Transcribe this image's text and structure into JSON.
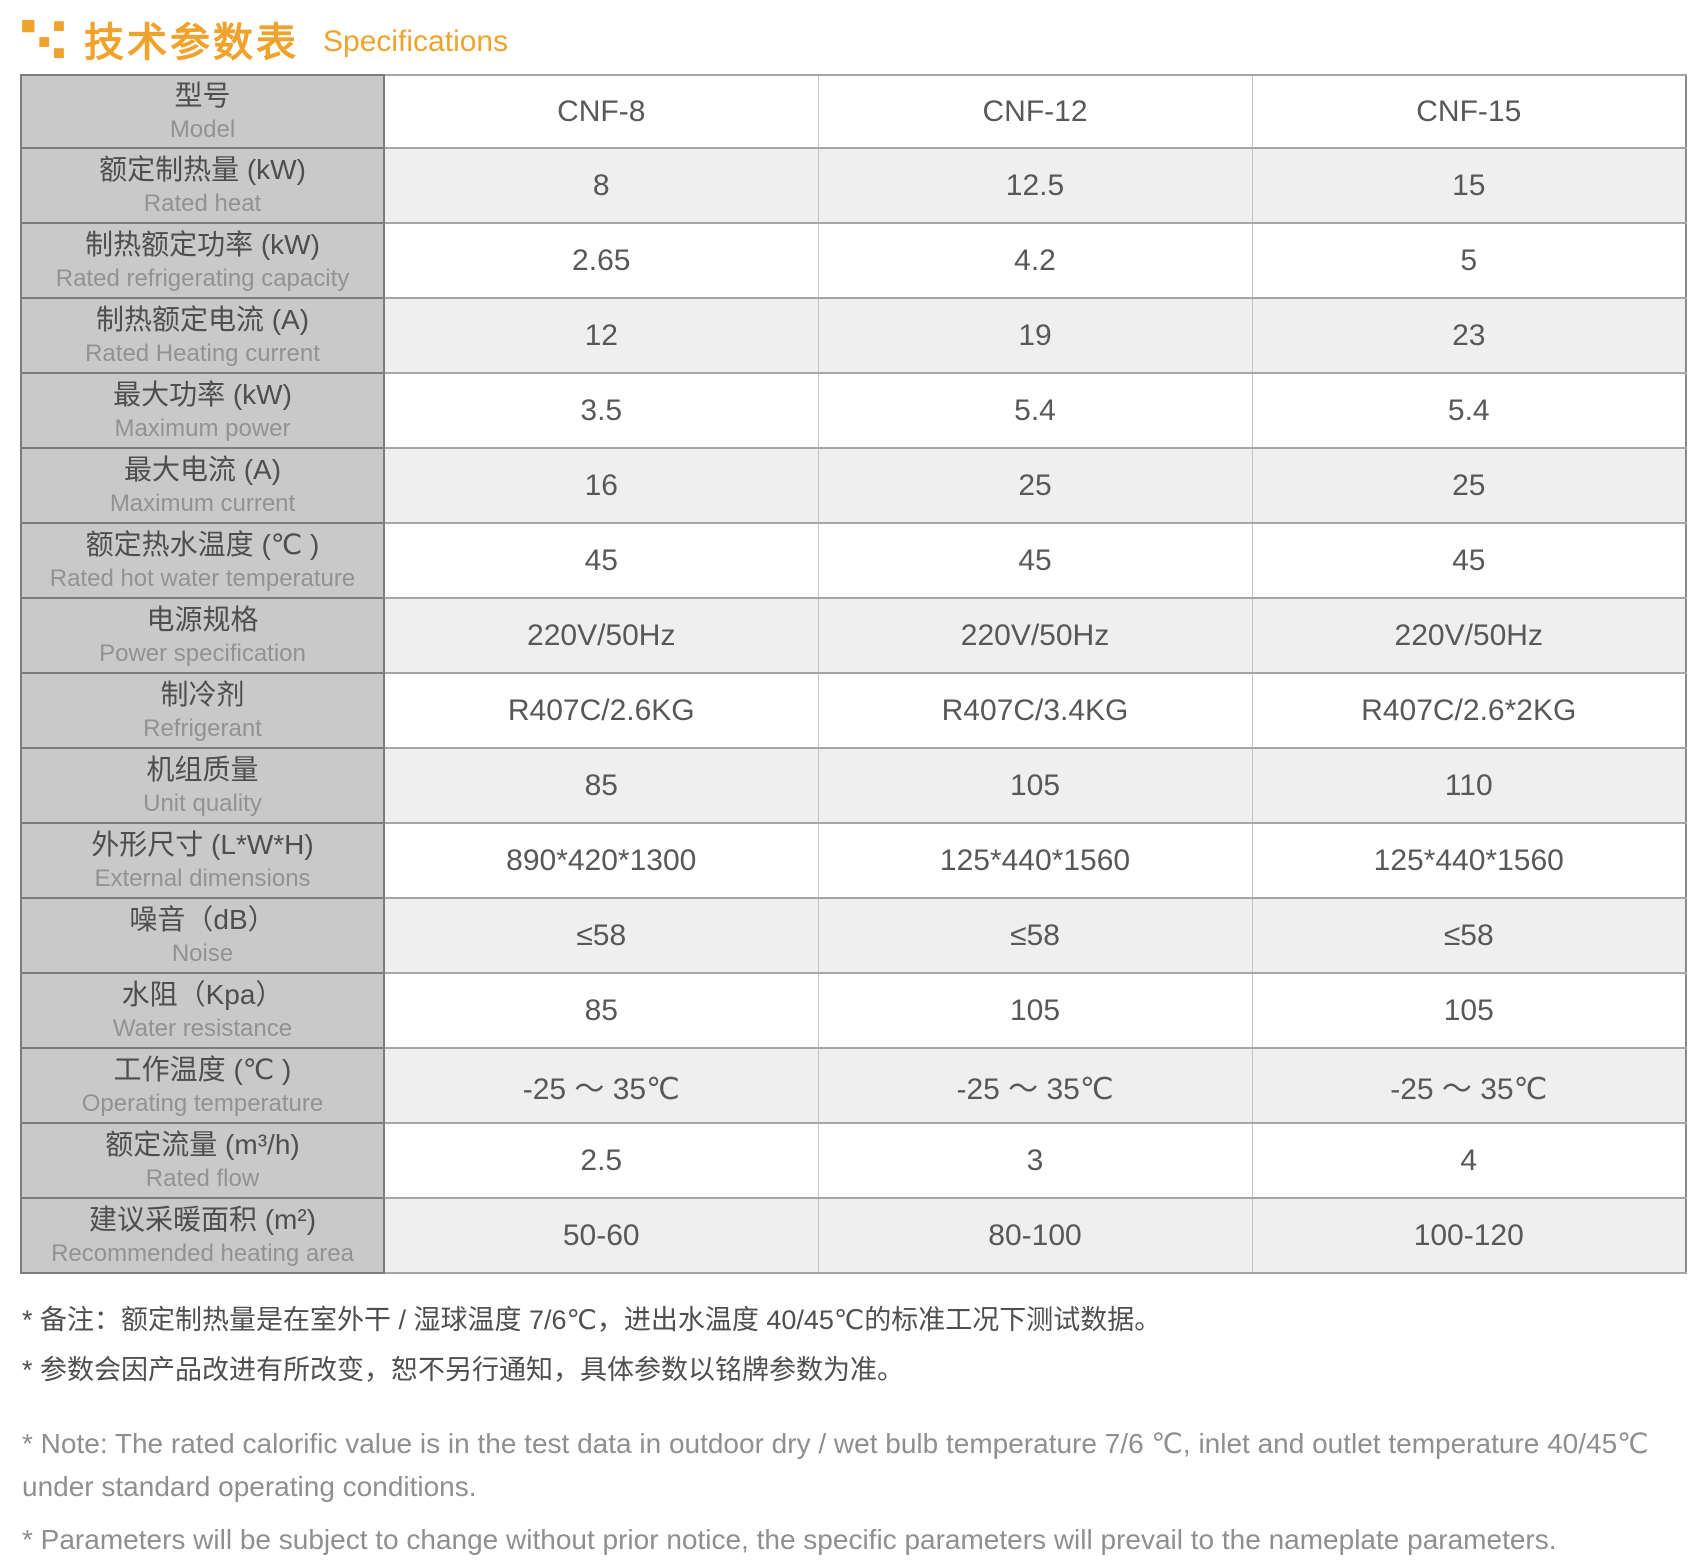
{
  "colors": {
    "accent": "#F0A32C",
    "label_bg": "#C9C9C9",
    "shaded_row_bg": "#EFEFEF"
  },
  "header": {
    "title_zh": "技术参数表",
    "title_en": "Specifications"
  },
  "table": {
    "model_label_zh": "型号",
    "model_label_en": "Model",
    "models": [
      "CNF-8",
      "CNF-12",
      "CNF-15"
    ],
    "rows": [
      {
        "label_zh": "额定制热量 (kW)",
        "label_en": "Rated heat",
        "values": [
          "8",
          "12.5",
          "15"
        ],
        "shaded": true
      },
      {
        "label_zh": "制热额定功率 (kW)",
        "label_en": "Rated refrigerating capacity",
        "values": [
          "2.65",
          "4.2",
          "5"
        ],
        "shaded": false
      },
      {
        "label_zh": "制热额定电流 (A)",
        "label_en": "Rated Heating current",
        "values": [
          "12",
          "19",
          "23"
        ],
        "shaded": true
      },
      {
        "label_zh": "最大功率 (kW)",
        "label_en": "Maximum power",
        "values": [
          "3.5",
          "5.4",
          "5.4"
        ],
        "shaded": false
      },
      {
        "label_zh": "最大电流 (A)",
        "label_en": "Maximum current",
        "values": [
          "16",
          "25",
          "25"
        ],
        "shaded": true
      },
      {
        "label_zh": "额定热水温度 (℃ )",
        "label_en": "Rated hot water temperature",
        "values": [
          "45",
          "45",
          "45"
        ],
        "shaded": false
      },
      {
        "label_zh": "电源规格",
        "label_en": "Power specification",
        "values": [
          "220V/50Hz",
          "220V/50Hz",
          "220V/50Hz"
        ],
        "shaded": true
      },
      {
        "label_zh": "制冷剂",
        "label_en": "Refrigerant",
        "values": [
          "R407C/2.6KG",
          "R407C/3.4KG",
          "R407C/2.6*2KG"
        ],
        "shaded": false
      },
      {
        "label_zh": "机组质量",
        "label_en": "Unit quality",
        "values": [
          "85",
          "105",
          "110"
        ],
        "shaded": true
      },
      {
        "label_zh": "外形尺寸 (L*W*H)",
        "label_en": "External dimensions",
        "values": [
          "890*420*1300",
          "125*440*1560",
          "125*440*1560"
        ],
        "shaded": false
      },
      {
        "label_zh": "噪音（dB）",
        "label_en": "Noise",
        "values": [
          "≤58",
          "≤58",
          "≤58"
        ],
        "shaded": true
      },
      {
        "label_zh": "水阻（Kpa）",
        "label_en": "Water resistance",
        "values": [
          "85",
          "105",
          "105"
        ],
        "shaded": false
      },
      {
        "label_zh": "工作温度 (℃ )",
        "label_en": "Operating temperature",
        "values": [
          "-25 ～ 35℃",
          "-25 ～ 35℃",
          "-25 ～ 35℃"
        ],
        "shaded": true
      },
      {
        "label_zh": "额定流量 (m³/h)",
        "label_en": "Rated flow",
        "values": [
          "2.5",
          "3",
          "4"
        ],
        "shaded": false
      },
      {
        "label_zh": "建议采暖面积 (m²)",
        "label_en": "Recommended heating area",
        "values": [
          "50-60",
          "80-100",
          "100-120"
        ],
        "shaded": true
      }
    ]
  },
  "notes": {
    "zh": [
      "* 备注：额定制热量是在室外干 / 湿球温度 7/6℃，进出水温度 40/45℃的标准工况下测试数据。",
      "* 参数会因产品改进有所改变，恕不另行通知，具体参数以铭牌参数为准。"
    ],
    "en": [
      "* Note: The rated calorific value is in the test data in outdoor dry / wet bulb temperature 7/6 ℃, inlet and outlet temperature 40/45℃ under standard operating conditions.",
      "* Parameters will be subject to change without prior notice, the specific parameters will prevail to the nameplate parameters."
    ]
  }
}
